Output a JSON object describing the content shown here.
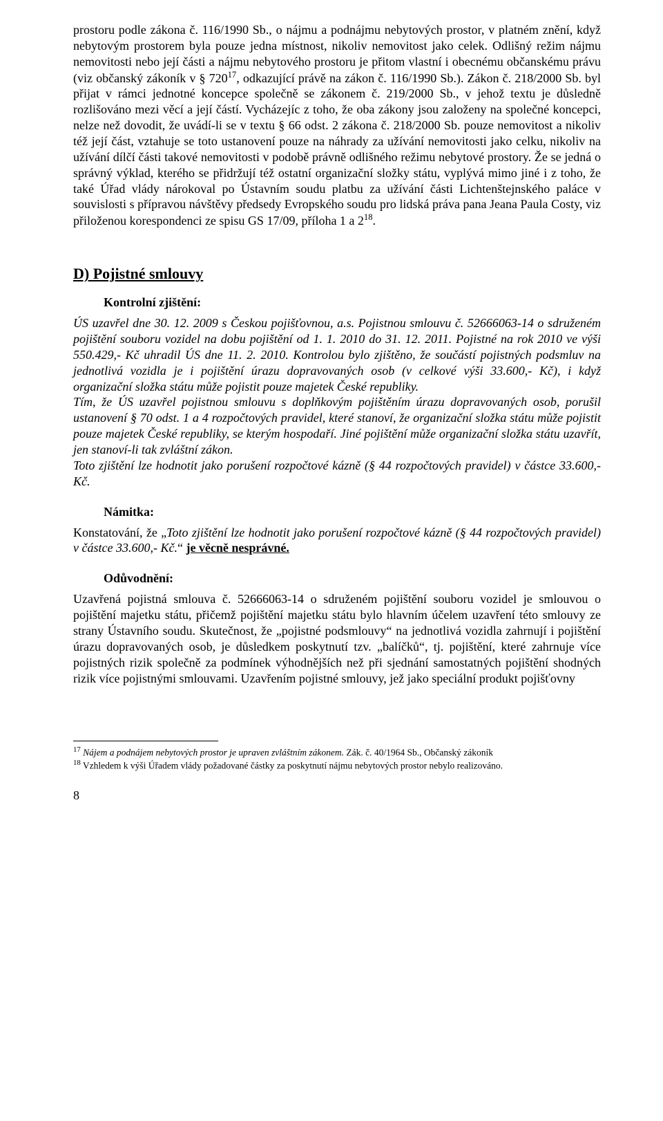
{
  "para1": "prostoru podle zákona č. 116/1990 Sb., o nájmu a podnájmu nebytových prostor, v platném znění, když nebytovým prostorem byla pouze jedna místnost, nikoliv nemovitost jako celek. Odlišný režim nájmu nemovitosti nebo její části a nájmu nebytového prostoru je přitom vlastní i obecnému občanskému právu (viz občanský zákoník v § 720",
  "para1_fn17": "17",
  "para1_cont1": ", odkazující právě na zákon č. 116/1990 Sb.). Zákon č. 218/2000 Sb. byl přijat v rámci jednotné koncepce společně se zákonem č. 219/2000 Sb., v jehož textu je důsledně rozlišováno mezi věcí a její částí. Vycházejíc z toho, že oba zákony jsou založeny na společné koncepci, nelze než dovodit, že uvádí-li se v textu § 66 odst. 2 zákona č. 218/2000 Sb. pouze nemovitost a nikoliv též její část, vztahuje se toto ustanovení pouze na náhrady za užívání nemovitosti jako celku, nikoliv na užívání dílčí části takové nemovitosti v podobě právně odlišného režimu nebytové prostory. Že se jedná o správný výklad, kterého se přidržují též ostatní organizační složky státu, vyplývá mimo jiné i z toho, že také Úřad vlády nárokoval po Ústavním soudu platbu za užívání části Lichtenštejnského paláce v souvislosti s přípravou návštěvy předsedy Evropského soudu pro lidská práva pana Jeana Paula Costy, viz přiloženou korespondenci ze spisu GS 17/09, příloha 1 a 2",
  "para1_fn18": "18",
  "para1_end": ".",
  "sectionD_heading": "D)  Pojistné smlouvy",
  "kontrolni_heading": "Kontrolní zjištění:",
  "italic_p1_a": "ÚS uzavřel dne 30. 12. 2009 s Českou pojišťovnou, a.s. Pojistnou smlouvu č. 52666063-14 o sdruženém pojištění souboru vozidel na dobu pojištění od 1. 1. 2010 do 31. 12. 2011. Pojistné na rok 2010 ve výši 550.429,- Kč uhradil ÚS dne 11. 2. 2010. Kontrolou bylo zjištěno, že součástí pojistných podsmluv na jednotlivá vozidla je i pojištění úrazu dopravovaných osob (v celkové výši 33.600,- Kč), i když organizační složka státu může pojistit pouze majetek České republiky.",
  "italic_p2": "Tím, že ÚS uzavřel pojistnou smlouvu s doplňkovým pojištěním úrazu dopravovaných osob, porušil ustanovení § 70 odst. 1 a 4 rozpočtových pravidel, které stanoví, že organizační složka státu může pojistit pouze majetek České republiky, se kterým hospodaří. Jiné pojištění může organizační složka státu uzavřít, jen stanoví-li tak zvláštní zákon.",
  "italic_p3": "Toto zjištění lze hodnotit jako porušení rozpočtové kázně (§ 44 rozpočtových pravidel) v částce 33.600,- Kč.",
  "namitka_heading": "Námitka:",
  "namitka_text_a": "Konstatování,  že  „",
  "namitka_text_italic": "Toto  zjištění  lze  hodnotit  jako  porušení  rozpočtové  kázně  (§  44 rozpočtových pravidel) v částce 33.600,- Kč.",
  "namitka_text_b": "“ ",
  "namitka_underline": "je věcně nesprávné.",
  "oduvodneni_heading": "Odůvodnění:",
  "oduvodneni_para": "Uzavřená pojistná smlouva č. 52666063-14 o sdruženém pojištění souboru vozidel je smlouvou o pojištění majetku státu, přičemž pojištění majetku státu bylo hlavním účelem uzavření této smlouvy ze strany Ústavního soudu. Skutečnost, že „pojistné podsmlouvy“ na jednotlivá vozidla zahrnují i pojištění úrazu dopravovaných osob, je důsledkem poskytnutí tzv. „balíčků“, tj. pojištění, které zahrnuje více pojistných rizik společně za podmínek výhodnějších než při sjednání samostatných pojištění shodných rizik více pojistnými smlouvami. Uzavřením pojistné smlouvy, jež jako speciální produkt pojišťovny",
  "fn17_num": "17",
  "fn17_text_italic": " Nájem a podnájem nebytových prostor je upraven zvláštním zákonem.",
  "fn17_text_rest": " Zák. č. 40/1964 Sb., Občanský zákoník",
  "fn18_num": "18",
  "fn18_text": " Vzhledem k výši Úřadem vlády požadované částky za poskytnutí nájmu nebytových prostor nebylo realizováno.",
  "page_num": "8"
}
